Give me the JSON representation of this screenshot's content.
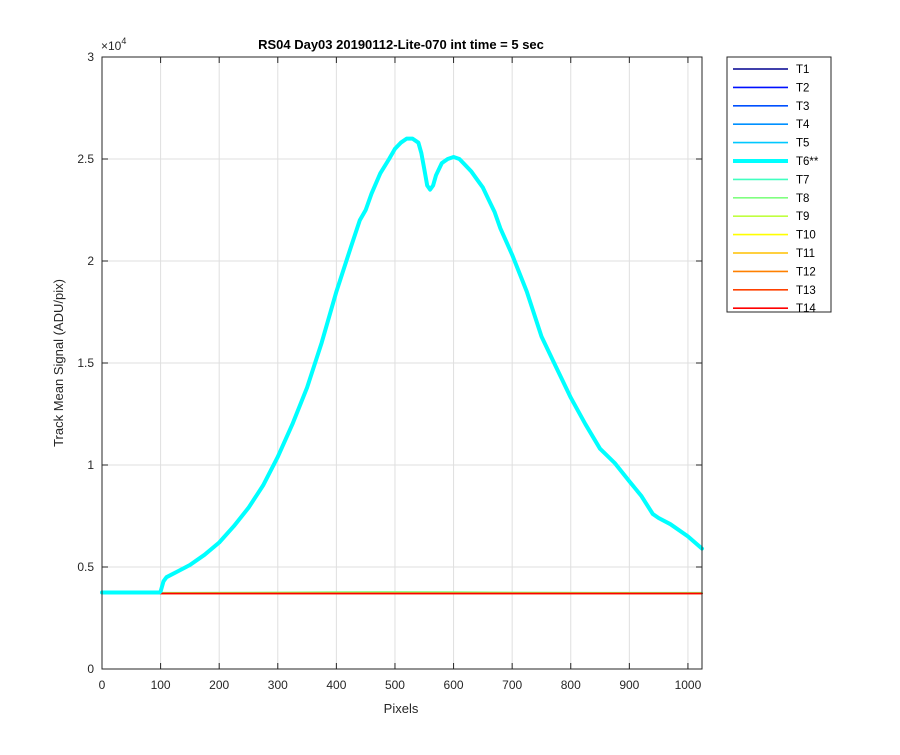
{
  "chart_data": {
    "type": "line",
    "title": "RS04 Day03 20190112-Lite-070 int time = 5 sec",
    "xlabel": "Pixels",
    "ylabel": "Track Mean Signal (ADU/pix)",
    "y_exponent_label": "×10",
    "y_exponent_power": "4",
    "y_multiplier": 10000,
    "xlim": [
      0,
      1024
    ],
    "ylim": [
      0,
      3
    ],
    "x_ticks": [
      0,
      100,
      200,
      300,
      400,
      500,
      600,
      700,
      800,
      900,
      1000
    ],
    "x_tick_labels": [
      "0",
      "100",
      "200",
      "300",
      "400",
      "500",
      "600",
      "700",
      "800",
      "900",
      "1000"
    ],
    "y_ticks": [
      0,
      0.5,
      1,
      1.5,
      2,
      2.5,
      3
    ],
    "y_tick_labels": [
      "0",
      "0.5",
      "1",
      "1.5",
      "2",
      "2.5",
      "3"
    ],
    "grid": true,
    "legend_position": "outside-top-right",
    "background": "#ffffff",
    "series": [
      {
        "name": "T1",
        "color": "#00008f",
        "highlight": false,
        "x": [
          0,
          1024
        ],
        "y": [
          0.37,
          0.37
        ]
      },
      {
        "name": "T2",
        "color": "#0010ff",
        "highlight": false,
        "x": [
          0,
          1024
        ],
        "y": [
          0.371,
          0.371
        ]
      },
      {
        "name": "T3",
        "color": "#0050ff",
        "highlight": false,
        "x": [
          0,
          1024
        ],
        "y": [
          0.371,
          0.371
        ]
      },
      {
        "name": "T4",
        "color": "#0090ff",
        "highlight": false,
        "x": [
          0,
          1024
        ],
        "y": [
          0.372,
          0.372
        ]
      },
      {
        "name": "T5",
        "color": "#00c8ff",
        "highlight": false,
        "x": [
          0,
          1024
        ],
        "y": [
          0.372,
          0.372
        ]
      },
      {
        "name": "T6**",
        "color": "#00ffff",
        "highlight": true,
        "x": [
          0,
          50,
          98,
          100,
          105,
          110,
          130,
          150,
          175,
          200,
          225,
          250,
          275,
          300,
          325,
          350,
          375,
          400,
          425,
          440,
          450,
          460,
          475,
          490,
          500,
          510,
          520,
          530,
          540,
          545,
          550,
          555,
          560,
          565,
          570,
          580,
          590,
          600,
          610,
          620,
          630,
          640,
          650,
          660,
          670,
          680,
          700,
          725,
          750,
          775,
          800,
          825,
          850,
          875,
          900,
          920,
          940,
          950,
          970,
          1000,
          1024
        ],
        "y": [
          0.375,
          0.375,
          0.375,
          0.38,
          0.43,
          0.45,
          0.48,
          0.51,
          0.56,
          0.62,
          0.7,
          0.79,
          0.9,
          1.04,
          1.2,
          1.38,
          1.6,
          1.85,
          2.07,
          2.2,
          2.25,
          2.33,
          2.43,
          2.5,
          2.55,
          2.58,
          2.6,
          2.6,
          2.58,
          2.53,
          2.45,
          2.37,
          2.35,
          2.37,
          2.42,
          2.48,
          2.5,
          2.51,
          2.5,
          2.47,
          2.44,
          2.4,
          2.36,
          2.3,
          2.24,
          2.16,
          2.03,
          1.85,
          1.63,
          1.48,
          1.33,
          1.2,
          1.08,
          1.01,
          0.92,
          0.85,
          0.76,
          0.74,
          0.71,
          0.65,
          0.59
        ]
      },
      {
        "name": "T7",
        "color": "#40ffc0",
        "highlight": false,
        "x": [
          0,
          1024
        ],
        "y": [
          0.374,
          0.374
        ]
      },
      {
        "name": "T8",
        "color": "#80ff80",
        "highlight": false,
        "x": [
          0,
          200,
          400,
          500,
          600,
          800,
          1024
        ],
        "y": [
          0.372,
          0.374,
          0.377,
          0.378,
          0.377,
          0.374,
          0.372
        ]
      },
      {
        "name": "T9",
        "color": "#c0ff40",
        "highlight": false,
        "x": [
          0,
          1024
        ],
        "y": [
          0.372,
          0.372
        ]
      },
      {
        "name": "T10",
        "color": "#ffff00",
        "highlight": false,
        "x": [
          0,
          1024
        ],
        "y": [
          0.371,
          0.371
        ]
      },
      {
        "name": "T11",
        "color": "#ffc000",
        "highlight": false,
        "x": [
          0,
          1024
        ],
        "y": [
          0.371,
          0.371
        ]
      },
      {
        "name": "T12",
        "color": "#ff8000",
        "highlight": false,
        "x": [
          0,
          1024
        ],
        "y": [
          0.37,
          0.37
        ]
      },
      {
        "name": "T13",
        "color": "#ff4000",
        "highlight": false,
        "x": [
          0,
          1024
        ],
        "y": [
          0.37,
          0.37
        ]
      },
      {
        "name": "T14",
        "color": "#ff0000",
        "highlight": false,
        "x": [
          0,
          1024
        ],
        "y": [
          0.37,
          0.37
        ]
      }
    ]
  }
}
